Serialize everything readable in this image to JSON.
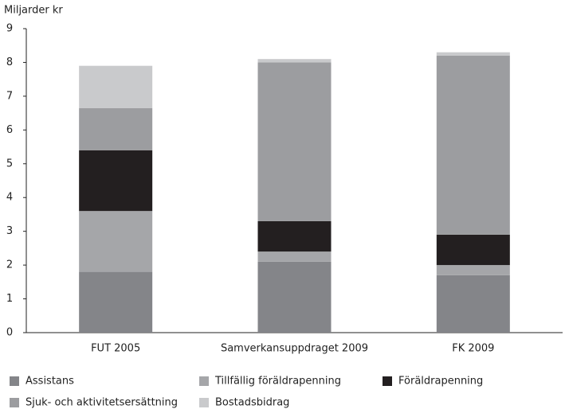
{
  "chart_data": {
    "type": "stacked-bar",
    "y_label": "Miljarder kr",
    "categories": [
      "FUT 2005",
      "Samverkansuppdraget 2009",
      "FK 2009"
    ],
    "series": [
      {
        "name": "Assistans",
        "color": "#848589",
        "values": [
          1.8,
          2.1,
          1.7
        ]
      },
      {
        "name": "Tillfällig föräldrapenning",
        "color": "#a5a6a9",
        "values": [
          1.8,
          0.3,
          0.3
        ]
      },
      {
        "name": "Föräldrapenning",
        "color": "#231f20",
        "values": [
          1.8,
          0.9,
          0.9
        ]
      },
      {
        "name": "Sjuk- och aktivitetsersättning",
        "color": "#9c9da0",
        "values": [
          1.25,
          4.7,
          5.3
        ]
      },
      {
        "name": "Bostadsbidrag",
        "color": "#c9cacc",
        "values": [
          1.25,
          0.1,
          0.1
        ]
      }
    ],
    "ylim": [
      0,
      9
    ],
    "yticks": [
      0,
      1,
      2,
      3,
      4,
      5,
      6,
      7,
      8,
      9
    ],
    "grid": false,
    "legend": "bottom"
  }
}
